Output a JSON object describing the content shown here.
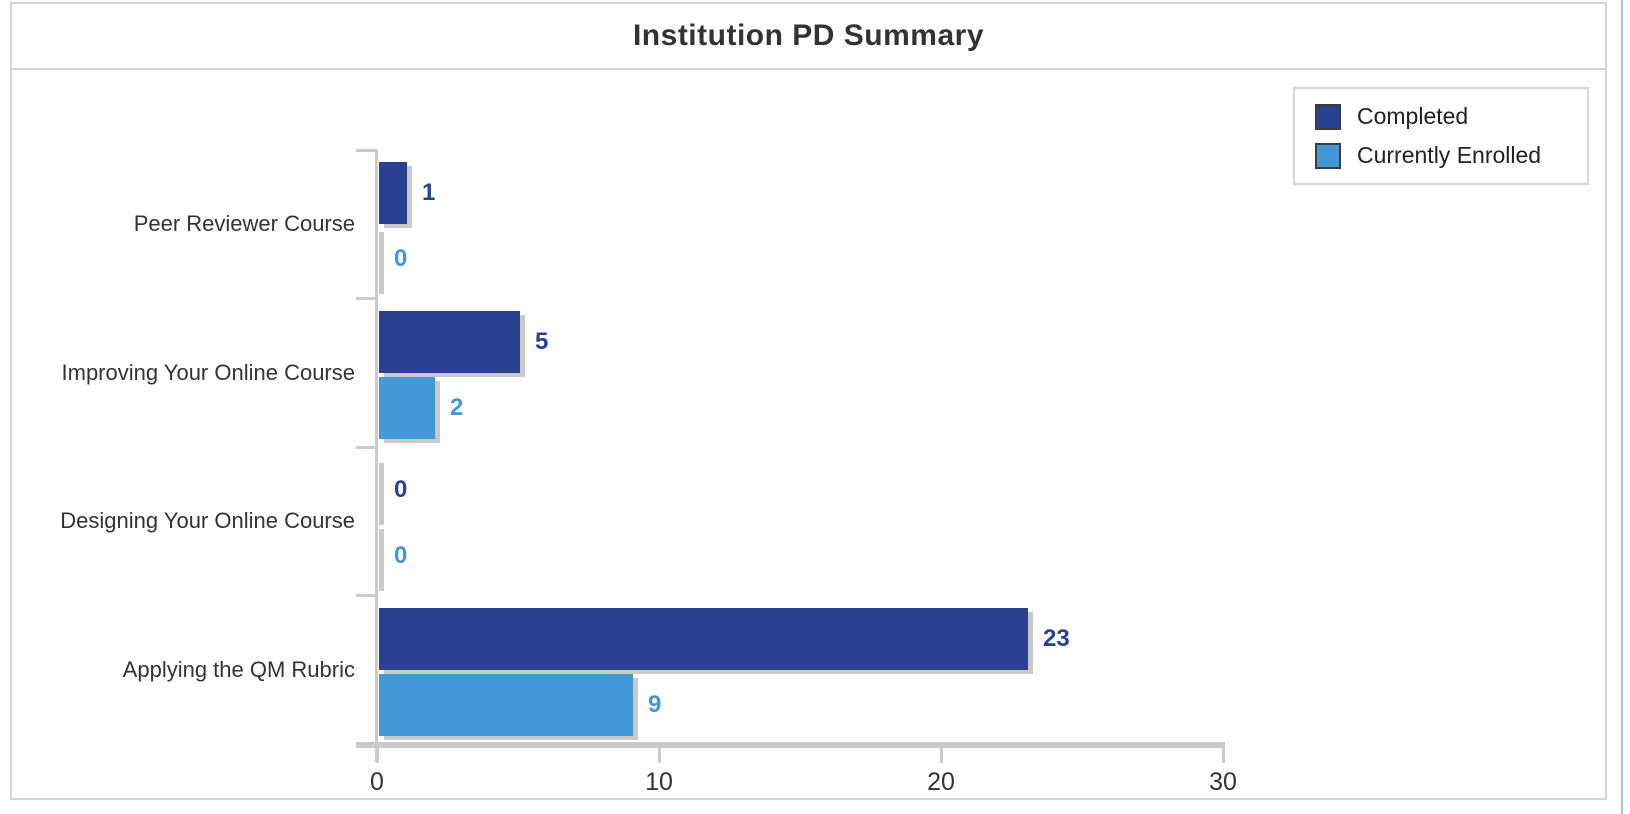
{
  "panel": {
    "title": "Institution PD Summary"
  },
  "legend": {
    "items": [
      {
        "label": "Completed",
        "color": "#2a4191"
      },
      {
        "label": "Currently Enrolled",
        "color": "#4398d5"
      }
    ]
  },
  "chart_data": {
    "type": "bar",
    "orientation": "horizontal",
    "title": "Institution PD Summary",
    "categories": [
      "Peer Reviewer Course",
      "Improving Your Online Course",
      "Designing Your Online Course",
      "Applying the QM Rubric"
    ],
    "series": [
      {
        "name": "Completed",
        "color": "#2a4191",
        "values": [
          1,
          5,
          0,
          23
        ]
      },
      {
        "name": "Currently Enrolled",
        "color": "#4398d5",
        "values": [
          0,
          2,
          0,
          9
        ]
      }
    ],
    "x_axis": {
      "min": 0,
      "max": 30,
      "ticks": [
        0,
        10,
        20,
        30
      ]
    },
    "value_labels": true,
    "grid": false,
    "legend_position": "top-right",
    "axis_color": "#cbcbcb",
    "shadow_color": "#c9c9c9",
    "label_color": "#333333"
  }
}
